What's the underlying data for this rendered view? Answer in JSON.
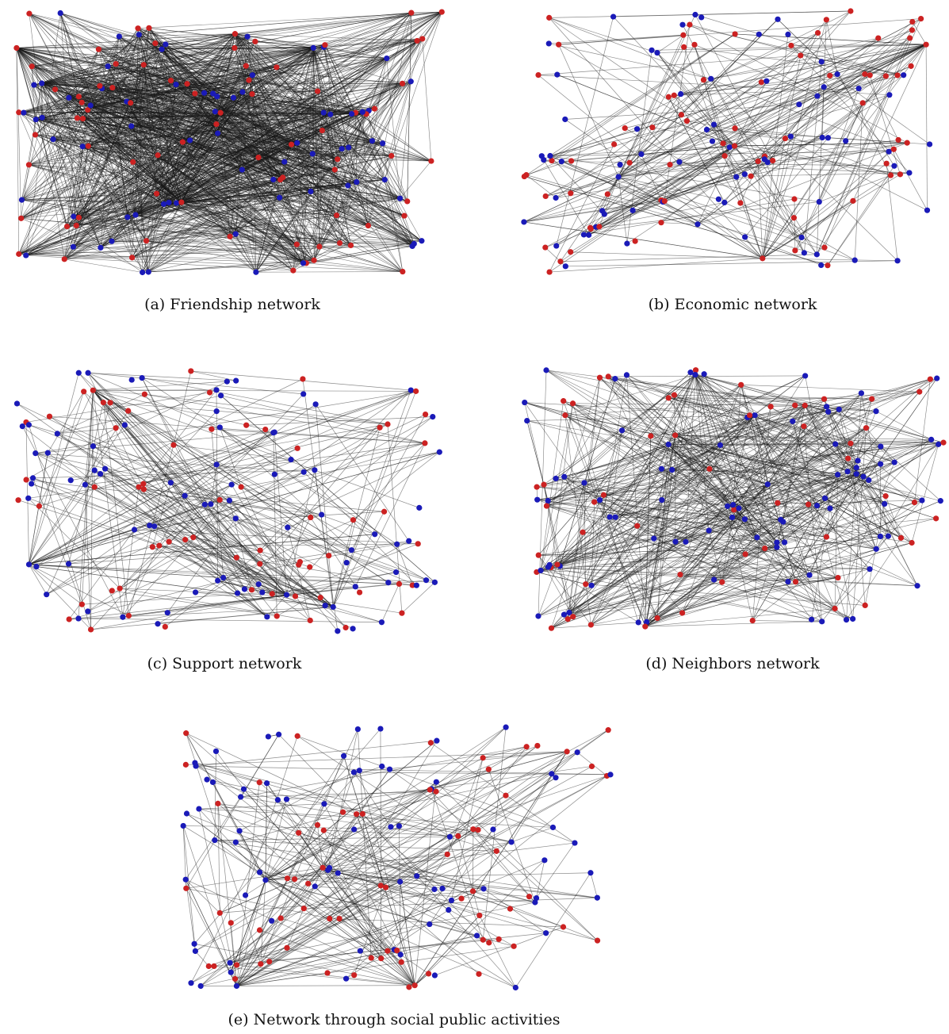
{
  "colors": {
    "group_1": "#cc2222",
    "group_2": "#1a1ab8",
    "edge": "#1a1a1a"
  },
  "panels": [
    {
      "id": "a",
      "caption": "(a) Friendship network",
      "density": "very-dense"
    },
    {
      "id": "b",
      "caption": "(b) Economic network",
      "density": "medium"
    },
    {
      "id": "c",
      "caption": "(c) Support network",
      "density": "medium"
    },
    {
      "id": "d",
      "caption": "(d) Neighbors network",
      "density": "dense"
    },
    {
      "id": "e",
      "caption": "(e) Network through social public activities",
      "density": "medium"
    }
  ]
}
